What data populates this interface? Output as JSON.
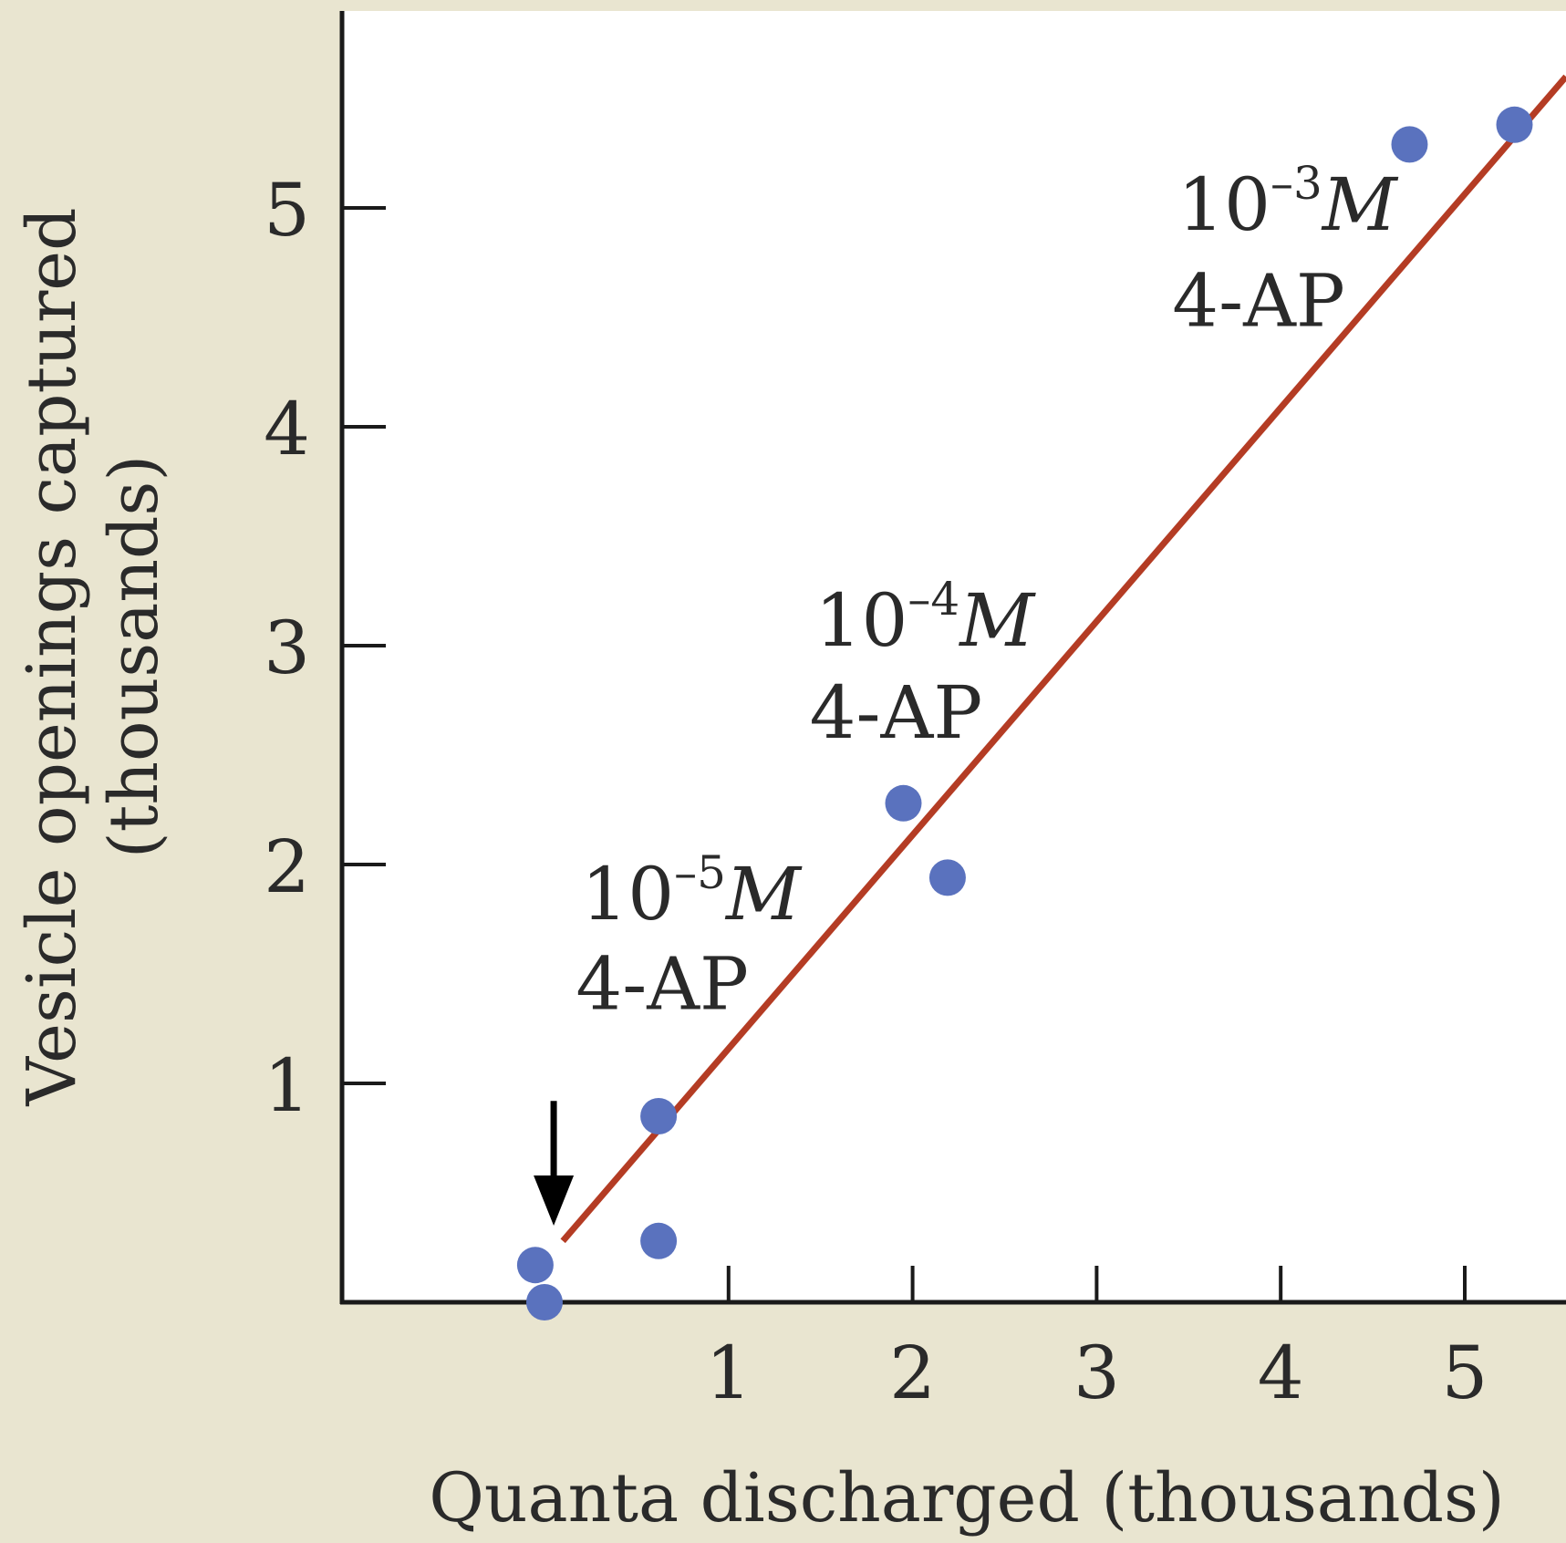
{
  "colors": {
    "background": "#E9E5D0",
    "plot_area": "#FFFFFF",
    "axis": "#1a1a1a",
    "points": "#5A72BE",
    "fit_line": "#B43C24",
    "arrow": "#000000"
  },
  "chart_data": {
    "type": "scatter",
    "xlabel": "Quanta discharged (thousands)",
    "ylabel_line1": "Vesicle openings captured",
    "ylabel_line2": "(thousands)",
    "xlim": [
      -1.1,
      5.55
    ],
    "ylim": [
      0,
      5.9
    ],
    "xticks": [
      1,
      2,
      3,
      4,
      5
    ],
    "yticks": [
      1,
      2,
      3,
      4,
      5
    ],
    "grid": false,
    "legend": "none",
    "series": [
      {
        "x": [
          -0.05,
          0.0,
          0.62,
          0.62,
          1.95,
          2.19,
          4.7,
          5.27
        ],
        "y": [
          0.17,
          0.0,
          0.85,
          0.28,
          2.28,
          1.94,
          5.29,
          5.38
        ]
      }
    ],
    "fit_line": {
      "x": [
        0.1,
        5.55
      ],
      "y": [
        0.28,
        5.6
      ]
    },
    "arrow": {
      "x": 0.05,
      "y_from": 0.92,
      "y_to": 0.35
    },
    "annotations": [
      {
        "base": "10",
        "exp": "–5",
        "unit": "M",
        "line2": "4-AP",
        "x": 0.2,
        "y": 1.75,
        "y2": 1.34
      },
      {
        "base": "10",
        "exp": "–4",
        "unit": "M",
        "line2": "4-AP",
        "x": 1.47,
        "y": 3.0,
        "y2": 2.58
      },
      {
        "base": "10",
        "exp": "–3",
        "unit": "M",
        "line2": "4-AP",
        "x": 3.44,
        "y": 4.9,
        "y2": 4.46
      }
    ]
  }
}
